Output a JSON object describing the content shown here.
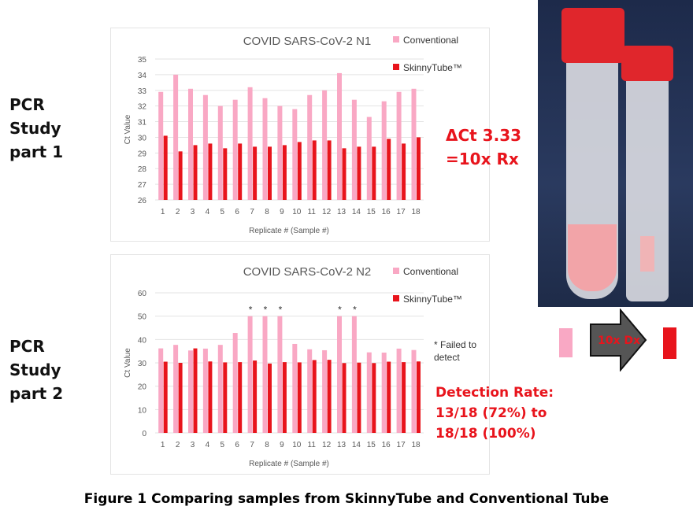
{
  "side_labels": {
    "part1": "PCR Study part 1",
    "part2": "PCR Study part 2"
  },
  "annotations": {
    "delta_ct_line1": "ΔCt 3.33",
    "delta_ct_line2": "=10x Rx",
    "failed_note": "* Failed to detect",
    "detection_line1": "Detection Rate:",
    "detection_line2": "13/18 (72%) to",
    "detection_line3": "18/18 (100%)",
    "arrow_label": "10x Dx"
  },
  "caption": "Figure 1 Comparing samples from SkinnyTube and Conventional Tube",
  "colors": {
    "conventional": "#f9a8c4",
    "skinnytube": "#e8141c",
    "arrow": "#555555"
  },
  "chart_data": [
    {
      "type": "bar",
      "title": "COVID SARS-CoV-2 N1",
      "xlabel": "Replicate # (Sample #)",
      "ylabel": "Ct Value",
      "ylim": [
        26,
        35
      ],
      "yticks": [
        26,
        27,
        28,
        29,
        30,
        31,
        32,
        33,
        34,
        35
      ],
      "grid": true,
      "legend": "top-right",
      "categories": [
        "1",
        "2",
        "3",
        "4",
        "5",
        "6",
        "7",
        "8",
        "9",
        "10",
        "11",
        "12",
        "13",
        "14",
        "15",
        "16",
        "17",
        "18"
      ],
      "series": [
        {
          "name": "Conventional",
          "values": [
            32.9,
            34.0,
            33.1,
            32.7,
            32.0,
            32.4,
            33.2,
            32.5,
            32.0,
            31.8,
            32.7,
            33.0,
            34.1,
            32.4,
            31.3,
            32.3,
            32.9,
            33.1
          ]
        },
        {
          "name": "SkinnyTube™",
          "values": [
            30.1,
            29.1,
            29.5,
            29.6,
            29.3,
            29.6,
            29.4,
            29.4,
            29.5,
            29.7,
            29.8,
            29.8,
            29.3,
            29.4,
            29.4,
            29.9,
            29.6,
            30.0
          ]
        }
      ]
    },
    {
      "type": "bar",
      "title": "COVID SARS-CoV-2 N2",
      "xlabel": "Replicate # (Sample #)",
      "ylabel": "Ct Value",
      "ylim": [
        0,
        60
      ],
      "yticks": [
        0,
        10,
        20,
        30,
        40,
        50,
        60
      ],
      "grid": true,
      "legend": "top-right",
      "categories": [
        "1",
        "2",
        "3",
        "4",
        "5",
        "6",
        "7",
        "8",
        "9",
        "10",
        "11",
        "12",
        "13",
        "14",
        "15",
        "16",
        "17",
        "18"
      ],
      "series": [
        {
          "name": "Conventional",
          "values": [
            36.2,
            37.7,
            35.3,
            36.1,
            37.7,
            42.8,
            50,
            50,
            50,
            38.1,
            35.8,
            35.4,
            50,
            50,
            34.5,
            34.4,
            36.1,
            35.5
          ]
        },
        {
          "name": "SkinnyTube™",
          "values": [
            30.5,
            30.0,
            36.2,
            30.6,
            30.2,
            30.3,
            31.0,
            29.7,
            30.3,
            30.2,
            31.2,
            31.3,
            29.9,
            30.1,
            29.9,
            30.5,
            30.3,
            30.6
          ]
        }
      ],
      "failed_markers": [
        "7",
        "8",
        "9",
        "13",
        "14"
      ],
      "marker_label": "*"
    }
  ]
}
